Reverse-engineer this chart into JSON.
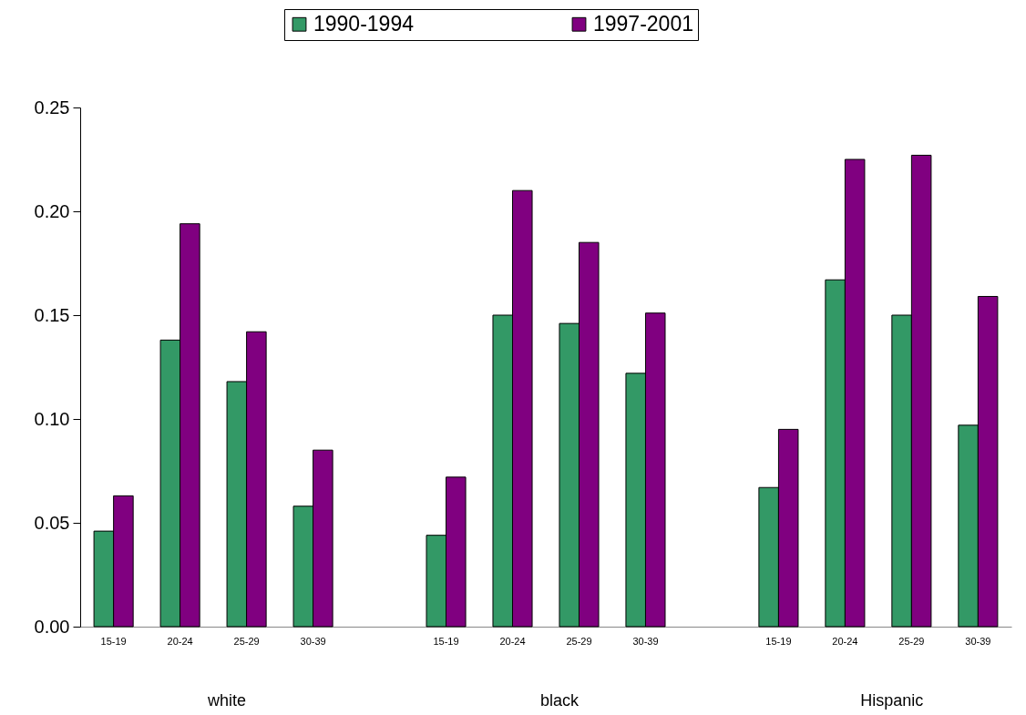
{
  "chart_data": {
    "type": "bar",
    "categories": [
      "15-19",
      "20-24",
      "25-29",
      "30-39",
      null,
      "15-19",
      "20-24",
      "25-29",
      "30-39",
      null,
      "15-19",
      "20-24",
      "25-29",
      "30-39"
    ],
    "series": [
      {
        "name": "1990-1994",
        "color": "#339966",
        "values": [
          0.046,
          0.138,
          0.118,
          0.058,
          null,
          0.044,
          0.15,
          0.146,
          0.122,
          null,
          0.067,
          0.167,
          0.15,
          0.097
        ]
      },
      {
        "name": "1997-2001",
        "color": "#800080",
        "values": [
          0.063,
          0.194,
          0.142,
          0.085,
          null,
          0.072,
          0.21,
          0.185,
          0.151,
          null,
          0.095,
          0.225,
          0.227,
          0.159
        ]
      }
    ],
    "ylim": [
      0,
      0.25
    ],
    "yticks": [
      {
        "value": 0,
        "label": "0.00"
      },
      {
        "value": 0.05,
        "label": "0.05"
      },
      {
        "value": 0.1,
        "label": "0.10"
      },
      {
        "value": 0.15,
        "label": "0.15"
      },
      {
        "value": 0.2,
        "label": "0.20"
      },
      {
        "value": 0.25,
        "label": "0.25"
      }
    ],
    "annotations": [
      "white",
      "black",
      "Hispanic"
    ],
    "legend": "top"
  }
}
